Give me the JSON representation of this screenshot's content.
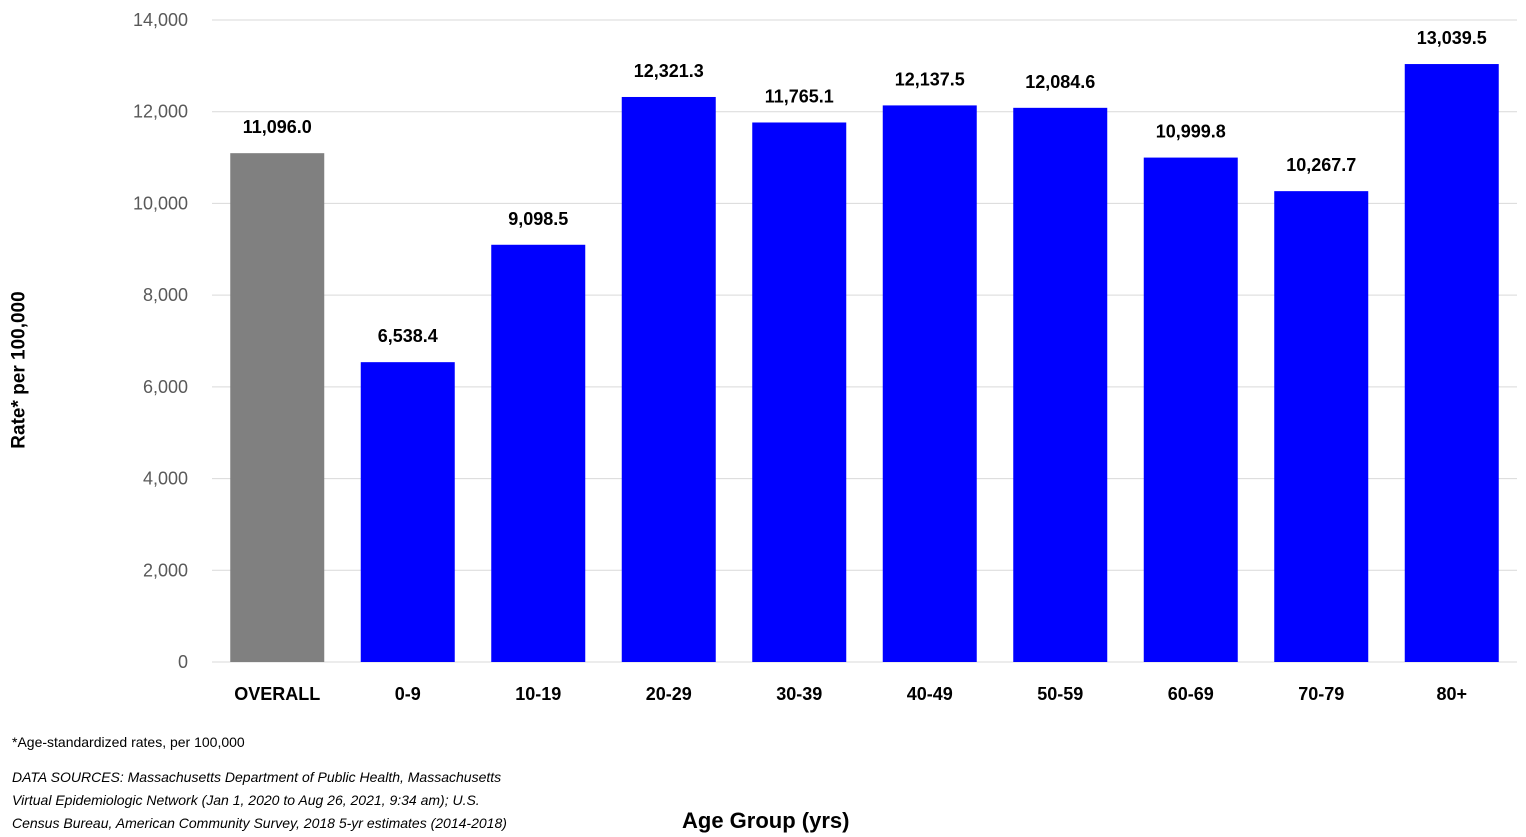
{
  "chart_data": {
    "type": "bar",
    "title": "",
    "xlabel": "Age Group (yrs)",
    "ylabel": "Rate* per 100,000",
    "ylim": [
      0,
      14000
    ],
    "yticks": [
      0,
      2000,
      4000,
      6000,
      8000,
      10000,
      12000,
      14000
    ],
    "ytick_labels": [
      "0",
      "2,000",
      "4,000",
      "6,000",
      "8,000",
      "10,000",
      "12,000",
      "14,000"
    ],
    "grid": true,
    "categories": [
      "OVERALL",
      "0-9",
      "10-19",
      "20-29",
      "30-39",
      "40-49",
      "50-59",
      "60-69",
      "70-79",
      "80+"
    ],
    "values": [
      11096.0,
      6538.4,
      9098.5,
      12321.3,
      11765.1,
      12137.5,
      12084.6,
      10999.8,
      10267.7,
      13039.5
    ],
    "data_labels": [
      "11,096.0",
      "6,538.4",
      "9,098.5",
      "12,321.3",
      "11,765.1",
      "12,137.5",
      "12,084.6",
      "10,999.8",
      "10,267.7",
      "13,039.5"
    ],
    "colors": [
      "#808080",
      "#0000ff",
      "#0000ff",
      "#0000ff",
      "#0000ff",
      "#0000ff",
      "#0000ff",
      "#0000ff",
      "#0000ff",
      "#0000ff"
    ],
    "gridline_color": "#d9d9d9"
  },
  "footnote": "*Age-standardized rates, per 100,000",
  "sources": [
    "DATA SOURCES: Massachusetts Department of Public Health, Massachusetts",
    "Virtual Epidemiologic Network (Jan 1, 2020 to Aug 26, 2021, 9:34 am); U.S.",
    "Census Bureau, American Community Survey, 2018 5-yr estimates (2014-2018)"
  ]
}
